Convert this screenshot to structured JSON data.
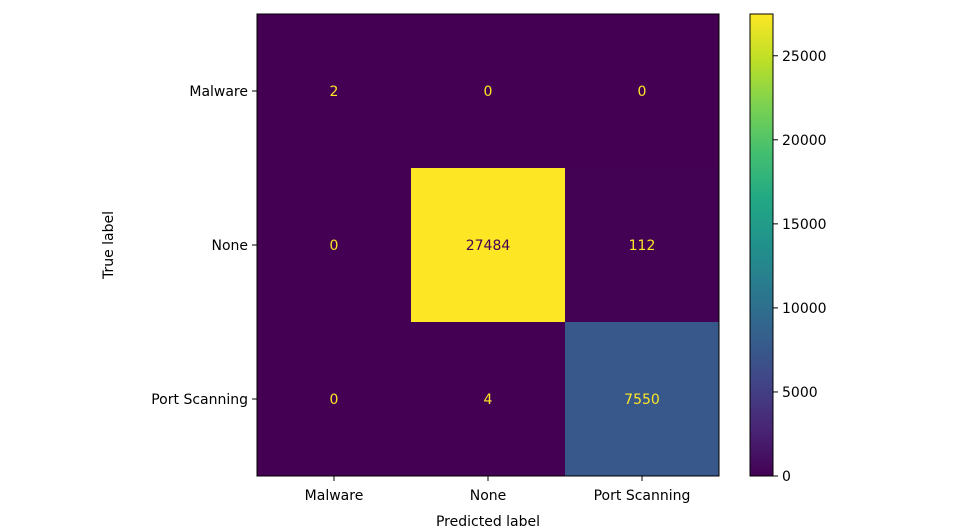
{
  "chart_data": {
    "type": "heatmap",
    "title": "",
    "xlabel": "Predicted label",
    "ylabel": "True label",
    "x_categories": [
      "Malware",
      "None",
      "Port Scanning"
    ],
    "y_categories": [
      "Malware",
      "None",
      "Port Scanning"
    ],
    "matrix": [
      [
        2,
        0,
        0
      ],
      [
        0,
        27484,
        112
      ],
      [
        0,
        4,
        7550
      ]
    ],
    "colormap": "viridis",
    "colorbar": {
      "range": [
        0,
        27484
      ],
      "ticks": [
        0,
        5000,
        10000,
        15000,
        20000,
        25000
      ]
    },
    "text_colors": {
      "on_dark": "#fde725",
      "on_light": "#440154"
    },
    "grid": false
  }
}
